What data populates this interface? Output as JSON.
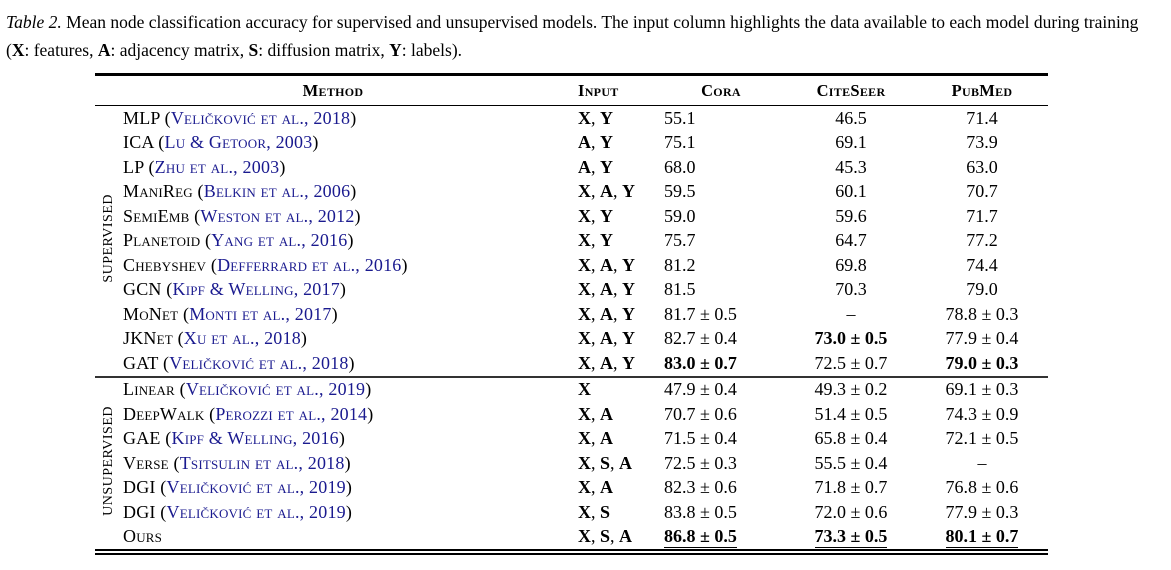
{
  "caption": {
    "label": "Table 2.",
    "body": [
      {
        "t": " Mean node classification accuracy for supervised and unsupervised models. The input column highlights the data available to each model during training (",
        "b": false
      },
      {
        "t": "X",
        "b": true
      },
      {
        "t": ": features, ",
        "b": false
      },
      {
        "t": "A",
        "b": true
      },
      {
        "t": ": adjacency matrix, ",
        "b": false
      },
      {
        "t": "S",
        "b": true
      },
      {
        "t": ": diffusion matrix, ",
        "b": false
      },
      {
        "t": "Y",
        "b": true
      },
      {
        "t": ": labels).",
        "b": false
      }
    ]
  },
  "colors": {
    "citation": "#1a1a8f",
    "text": "#000000",
    "rule": "#000000"
  },
  "table": {
    "headers": [
      "Method",
      "Input",
      "Cora",
      "CiteSeer",
      "PubMed"
    ],
    "datasets": [
      "Cora",
      "CiteSeer",
      "PubMed"
    ],
    "sections": [
      {
        "label": "Supervised",
        "rows": [
          {
            "method": "MLP",
            "cite": "Veličković et al., 2018",
            "input": [
              "X",
              "Y"
            ],
            "cells": [
              {
                "v": "55.1"
              },
              {
                "v": "46.5"
              },
              {
                "v": "71.4"
              }
            ]
          },
          {
            "method": "ICA",
            "cite": "Lu & Getoor, 2003",
            "input": [
              "A",
              "Y"
            ],
            "cells": [
              {
                "v": "75.1"
              },
              {
                "v": "69.1"
              },
              {
                "v": "73.9"
              }
            ]
          },
          {
            "method": "LP",
            "cite": "Zhu et al., 2003",
            "input": [
              "A",
              "Y"
            ],
            "cells": [
              {
                "v": "68.0"
              },
              {
                "v": "45.3"
              },
              {
                "v": "63.0"
              }
            ]
          },
          {
            "method": "ManiReg",
            "cite": "Belkin et al., 2006",
            "input": [
              "X",
              "A",
              "Y"
            ],
            "cells": [
              {
                "v": "59.5"
              },
              {
                "v": "60.1"
              },
              {
                "v": "70.7"
              }
            ]
          },
          {
            "method": "SemiEmb",
            "cite": "Weston et al., 2012",
            "input": [
              "X",
              "Y"
            ],
            "cells": [
              {
                "v": "59.0"
              },
              {
                "v": "59.6"
              },
              {
                "v": "71.7"
              }
            ]
          },
          {
            "method": "Planetoid",
            "cite": "Yang et al., 2016",
            "input": [
              "X",
              "Y"
            ],
            "cells": [
              {
                "v": "75.7"
              },
              {
                "v": "64.7"
              },
              {
                "v": "77.2"
              }
            ]
          },
          {
            "method": "Chebyshev",
            "cite": "Defferrard et al., 2016",
            "input": [
              "X",
              "A",
              "Y"
            ],
            "cells": [
              {
                "v": "81.2"
              },
              {
                "v": "69.8"
              },
              {
                "v": "74.4"
              }
            ]
          },
          {
            "method": "GCN",
            "cite": "Kipf & Welling, 2017",
            "input": [
              "X",
              "A",
              "Y"
            ],
            "cells": [
              {
                "v": "81.5"
              },
              {
                "v": "70.3"
              },
              {
                "v": "79.0"
              }
            ]
          },
          {
            "method": "MoNet",
            "cite": "Monti et al., 2017",
            "input": [
              "X",
              "A",
              "Y"
            ],
            "cells": [
              {
                "v": "81.7 ± 0.5"
              },
              {
                "v": "–"
              },
              {
                "v": "78.8 ± 0.3"
              }
            ]
          },
          {
            "method": "JKNet",
            "cite": "Xu et al., 2018",
            "input": [
              "X",
              "A",
              "Y"
            ],
            "cells": [
              {
                "v": "82.7 ± 0.4"
              },
              {
                "v": "73.0 ± 0.5",
                "bold": true
              },
              {
                "v": "77.9 ± 0.4"
              }
            ]
          },
          {
            "method": "GAT",
            "cite": "Veličković et al., 2018",
            "input": [
              "X",
              "A",
              "Y"
            ],
            "cells": [
              {
                "v": "83.0 ± 0.7",
                "bold": true
              },
              {
                "v": "72.5 ± 0.7"
              },
              {
                "v": "79.0 ± 0.3",
                "bold": true
              }
            ]
          }
        ]
      },
      {
        "label": "Unsupervised",
        "rows": [
          {
            "method": "Linear",
            "cite": "Veličković et al., 2019",
            "input": [
              "X"
            ],
            "cells": [
              {
                "v": "47.9 ± 0.4"
              },
              {
                "v": "49.3 ± 0.2"
              },
              {
                "v": "69.1 ± 0.3"
              }
            ]
          },
          {
            "method": "DeepWalk",
            "cite": "Perozzi et al., 2014",
            "input": [
              "X",
              "A"
            ],
            "cells": [
              {
                "v": "70.7 ± 0.6"
              },
              {
                "v": "51.4 ± 0.5"
              },
              {
                "v": "74.3 ± 0.9"
              }
            ]
          },
          {
            "method": "GAE",
            "cite": "Kipf & Welling, 2016",
            "input": [
              "X",
              "A"
            ],
            "cells": [
              {
                "v": "71.5 ± 0.4"
              },
              {
                "v": "65.8 ± 0.4"
              },
              {
                "v": "72.1 ± 0.5"
              }
            ]
          },
          {
            "method": "Verse",
            "cite": "Tsitsulin et al., 2018",
            "input": [
              "X",
              "S",
              "A"
            ],
            "cells": [
              {
                "v": "72.5 ± 0.3"
              },
              {
                "v": "55.5 ± 0.4"
              },
              {
                "v": "–"
              }
            ]
          },
          {
            "method": "DGI",
            "cite": "Veličković et al., 2019",
            "input": [
              "X",
              "A"
            ],
            "cells": [
              {
                "v": "82.3 ± 0.6"
              },
              {
                "v": "71.8 ± 0.7"
              },
              {
                "v": "76.8 ± 0.6"
              }
            ]
          },
          {
            "method": "DGI",
            "cite": "Veličković et al., 2019",
            "input": [
              "X",
              "S"
            ],
            "cells": [
              {
                "v": "83.8 ± 0.5"
              },
              {
                "v": "72.0 ± 0.6"
              },
              {
                "v": "77.9 ± 0.3"
              }
            ]
          },
          {
            "method": "Ours",
            "cite": null,
            "input": [
              "X",
              "S",
              "A"
            ],
            "cells": [
              {
                "v": "86.8 ± 0.5",
                "bold": true,
                "underline": true
              },
              {
                "v": "73.3 ± 0.5",
                "bold": true,
                "underline": true
              },
              {
                "v": "80.1 ± 0.7",
                "bold": true,
                "underline": true
              }
            ]
          }
        ]
      }
    ]
  }
}
